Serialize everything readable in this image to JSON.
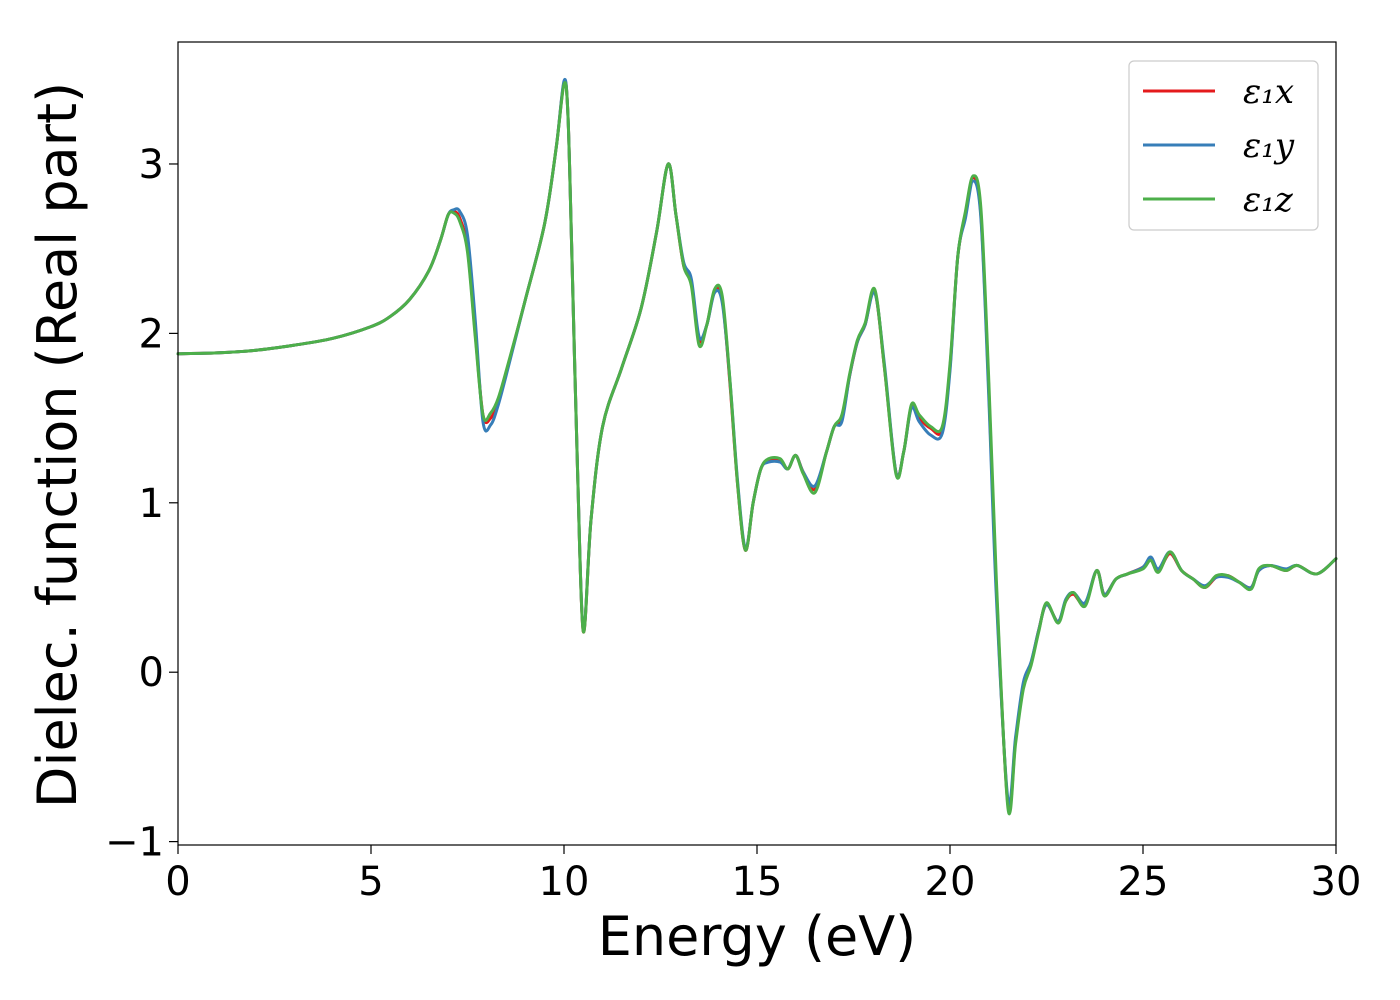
{
  "chart_data": {
    "type": "line",
    "title": "",
    "xlabel": "Energy (eV)",
    "ylabel": "Dielec. function (Real part)",
    "xlim": [
      0,
      30
    ],
    "ylim": [
      -1.02,
      3.72
    ],
    "xticks": [
      0,
      5,
      10,
      15,
      20,
      25,
      30
    ],
    "yticks": [
      -1,
      0,
      1,
      2,
      3
    ],
    "grid": false,
    "legend_position": "top-right",
    "series": [
      {
        "name": "ε₁x",
        "color": "#e41a1c",
        "x": [
          0,
          1,
          2,
          3,
          4,
          5,
          5.5,
          6,
          6.5,
          6.8,
          7.0,
          7.15,
          7.3,
          7.5,
          7.7,
          7.9,
          8.1,
          8.3,
          8.6,
          9.0,
          9.5,
          9.8,
          10.0,
          10.1,
          10.2,
          10.35,
          10.5,
          10.7,
          11.0,
          11.5,
          12.0,
          12.4,
          12.7,
          12.9,
          13.1,
          13.3,
          13.5,
          13.7,
          13.9,
          14.1,
          14.3,
          14.5,
          14.7,
          14.9,
          15.1,
          15.3,
          15.6,
          15.8,
          16.0,
          16.2,
          16.5,
          16.8,
          17.0,
          17.2,
          17.4,
          17.6,
          17.8,
          18.05,
          18.3,
          18.6,
          18.8,
          19.0,
          19.2,
          19.5,
          19.8,
          20.0,
          20.2,
          20.4,
          20.6,
          20.8,
          21.0,
          21.2,
          21.5,
          21.7,
          21.9,
          22.1,
          22.3,
          22.5,
          22.8,
          23.0,
          23.2,
          23.5,
          23.8,
          24.0,
          24.3,
          24.6,
          25.0,
          25.2,
          25.4,
          25.7,
          26.0,
          26.3,
          26.6,
          26.9,
          27.2,
          27.5,
          27.8,
          28.0,
          28.3,
          28.7,
          29.0,
          29.5,
          30.0
        ],
        "values": [
          1.88,
          1.885,
          1.9,
          1.93,
          1.97,
          2.04,
          2.1,
          2.2,
          2.37,
          2.55,
          2.7,
          2.72,
          2.68,
          2.5,
          2.0,
          1.52,
          1.5,
          1.6,
          1.85,
          2.2,
          2.65,
          3.1,
          3.48,
          3.3,
          2.5,
          1.2,
          0.24,
          0.9,
          1.45,
          1.8,
          2.15,
          2.6,
          3.0,
          2.7,
          2.4,
          2.3,
          1.96,
          2.05,
          2.25,
          2.2,
          1.7,
          1.1,
          0.72,
          1.0,
          1.2,
          1.25,
          1.25,
          1.2,
          1.28,
          1.18,
          1.08,
          1.3,
          1.45,
          1.5,
          1.75,
          1.95,
          2.05,
          2.25,
          1.8,
          1.18,
          1.3,
          1.57,
          1.5,
          1.44,
          1.43,
          1.8,
          2.45,
          2.7,
          2.92,
          2.7,
          1.7,
          0.5,
          -0.78,
          -0.4,
          -0.08,
          0.05,
          0.25,
          0.4,
          0.3,
          0.42,
          0.46,
          0.4,
          0.6,
          0.46,
          0.55,
          0.58,
          0.62,
          0.67,
          0.6,
          0.7,
          0.6,
          0.55,
          0.5,
          0.56,
          0.57,
          0.53,
          0.5,
          0.6,
          0.63,
          0.6,
          0.63,
          0.58,
          0.67
        ]
      },
      {
        "name": "ε₁y",
        "color": "#377eb8",
        "x": [
          0,
          1,
          2,
          3,
          4,
          5,
          5.5,
          6,
          6.5,
          6.8,
          7.0,
          7.15,
          7.3,
          7.5,
          7.7,
          7.9,
          8.1,
          8.3,
          8.6,
          9.0,
          9.5,
          9.8,
          10.0,
          10.1,
          10.2,
          10.35,
          10.5,
          10.7,
          11.0,
          11.5,
          12.0,
          12.4,
          12.7,
          12.9,
          13.1,
          13.3,
          13.5,
          13.7,
          13.9,
          14.1,
          14.3,
          14.5,
          14.7,
          14.9,
          15.1,
          15.3,
          15.6,
          15.8,
          16.0,
          16.2,
          16.5,
          16.8,
          17.0,
          17.2,
          17.4,
          17.6,
          17.8,
          18.05,
          18.3,
          18.6,
          18.8,
          19.0,
          19.2,
          19.5,
          19.8,
          20.0,
          20.2,
          20.4,
          20.6,
          20.8,
          21.0,
          21.2,
          21.5,
          21.7,
          21.9,
          22.1,
          22.3,
          22.5,
          22.8,
          23.0,
          23.2,
          23.5,
          23.8,
          24.0,
          24.3,
          24.6,
          25.0,
          25.2,
          25.4,
          25.7,
          26.0,
          26.3,
          26.6,
          26.9,
          27.2,
          27.5,
          27.8,
          28.0,
          28.3,
          28.7,
          29.0,
          29.5,
          30.0
        ],
        "values": [
          1.88,
          1.885,
          1.9,
          1.93,
          1.97,
          2.04,
          2.1,
          2.2,
          2.37,
          2.55,
          2.7,
          2.73,
          2.72,
          2.58,
          2.08,
          1.48,
          1.46,
          1.58,
          1.84,
          2.2,
          2.65,
          3.1,
          3.49,
          3.3,
          2.5,
          1.2,
          0.25,
          0.9,
          1.45,
          1.8,
          2.15,
          2.6,
          3.0,
          2.7,
          2.42,
          2.32,
          1.98,
          2.05,
          2.24,
          2.18,
          1.72,
          1.12,
          0.73,
          1.0,
          1.2,
          1.24,
          1.24,
          1.2,
          1.28,
          1.18,
          1.1,
          1.3,
          1.45,
          1.48,
          1.75,
          1.95,
          2.05,
          2.24,
          1.82,
          1.18,
          1.3,
          1.56,
          1.48,
          1.4,
          1.41,
          1.78,
          2.45,
          2.68,
          2.9,
          2.68,
          1.65,
          0.45,
          -0.75,
          -0.38,
          -0.06,
          0.06,
          0.25,
          0.4,
          0.3,
          0.43,
          0.47,
          0.41,
          0.6,
          0.46,
          0.55,
          0.58,
          0.62,
          0.68,
          0.61,
          0.71,
          0.6,
          0.55,
          0.51,
          0.56,
          0.56,
          0.53,
          0.5,
          0.6,
          0.63,
          0.61,
          0.63,
          0.58,
          0.67
        ]
      },
      {
        "name": "ε₁z",
        "color": "#4daf4a",
        "x": [
          0,
          1,
          2,
          3,
          4,
          5,
          5.5,
          6,
          6.5,
          6.8,
          7.0,
          7.15,
          7.3,
          7.5,
          7.7,
          7.9,
          8.1,
          8.3,
          8.6,
          9.0,
          9.5,
          9.8,
          10.0,
          10.1,
          10.2,
          10.35,
          10.5,
          10.7,
          11.0,
          11.5,
          12.0,
          12.4,
          12.7,
          12.9,
          13.1,
          13.3,
          13.5,
          13.7,
          13.9,
          14.1,
          14.3,
          14.5,
          14.7,
          14.9,
          15.1,
          15.3,
          15.6,
          15.8,
          16.0,
          16.2,
          16.5,
          16.8,
          17.0,
          17.2,
          17.4,
          17.6,
          17.8,
          18.05,
          18.3,
          18.6,
          18.8,
          19.0,
          19.2,
          19.5,
          19.8,
          20.0,
          20.2,
          20.4,
          20.6,
          20.8,
          21.0,
          21.2,
          21.5,
          21.7,
          21.9,
          22.1,
          22.3,
          22.5,
          22.8,
          23.0,
          23.2,
          23.5,
          23.8,
          24.0,
          24.3,
          24.6,
          25.0,
          25.2,
          25.4,
          25.7,
          26.0,
          26.3,
          26.6,
          26.9,
          27.2,
          27.5,
          27.8,
          28.0,
          28.3,
          28.7,
          29.0,
          29.5,
          30.0
        ],
        "values": [
          1.88,
          1.885,
          1.9,
          1.93,
          1.97,
          2.04,
          2.1,
          2.2,
          2.37,
          2.55,
          2.7,
          2.71,
          2.66,
          2.48,
          1.98,
          1.52,
          1.53,
          1.62,
          1.86,
          2.2,
          2.65,
          3.1,
          3.47,
          3.3,
          2.5,
          1.2,
          0.24,
          0.9,
          1.45,
          1.8,
          2.15,
          2.6,
          3.0,
          2.7,
          2.4,
          2.28,
          1.93,
          2.05,
          2.26,
          2.22,
          1.72,
          1.1,
          0.72,
          1.0,
          1.2,
          1.26,
          1.26,
          1.2,
          1.28,
          1.17,
          1.06,
          1.3,
          1.45,
          1.52,
          1.76,
          1.96,
          2.06,
          2.26,
          1.8,
          1.17,
          1.3,
          1.58,
          1.52,
          1.45,
          1.45,
          1.82,
          2.45,
          2.72,
          2.93,
          2.74,
          1.75,
          0.55,
          -0.8,
          -0.42,
          -0.1,
          0.04,
          0.24,
          0.41,
          0.29,
          0.42,
          0.47,
          0.39,
          0.6,
          0.45,
          0.55,
          0.58,
          0.61,
          0.66,
          0.59,
          0.71,
          0.6,
          0.55,
          0.5,
          0.57,
          0.57,
          0.53,
          0.49,
          0.61,
          0.63,
          0.6,
          0.63,
          0.58,
          0.67
        ]
      }
    ]
  }
}
